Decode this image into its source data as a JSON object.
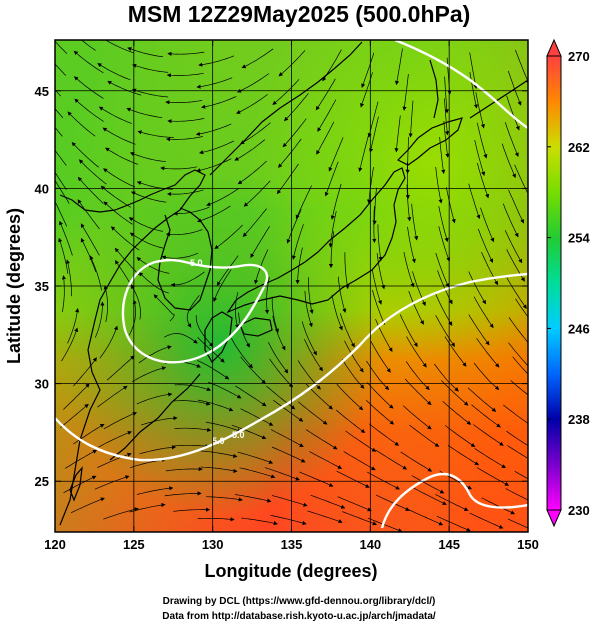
{
  "title": "MSM 12Z29May2025 (500.0hPa)",
  "xlabel": "Longitude (degrees)",
  "ylabel": "Latitude  (degrees)",
  "credit_line1": "Drawing by DCL (https://www.gfd-dennou.org/library/dcl/)",
  "credit_line2": "Data from http://database.rish.kyoto-u.ac.jp/arch/jmadata/",
  "colors": {
    "land_outline": "#000000",
    "contour": "#ffffff",
    "stream": "#000000"
  },
  "chart_data": {
    "type": "heatmap",
    "title": "MSM 12Z29May2025 (500.0hPa)",
    "xlabel": "Longitude (degrees)",
    "ylabel": "Latitude  (degrees)",
    "xlim": [
      120,
      150
    ],
    "ylim": [
      22.4,
      47.6
    ],
    "xticks": [
      120,
      125,
      130,
      135,
      140,
      145,
      150
    ],
    "yticks": [
      25,
      30,
      35,
      40,
      45
    ],
    "grid": true,
    "colorbar": {
      "min": 230,
      "max": 270,
      "ticks": [
        230,
        238,
        246,
        254,
        262,
        270
      ],
      "colors": [
        "#ff00ff",
        "#0000aa",
        "#00ffff",
        "#00cc44",
        "#88ee00",
        "#ff6600",
        "#ff4040"
      ]
    },
    "contour_labels": [
      "5.0",
      "5.0",
      "5.0"
    ],
    "overlays": [
      "temperature shading",
      "wind streamlines",
      "white contour lines",
      "coastlines"
    ]
  }
}
